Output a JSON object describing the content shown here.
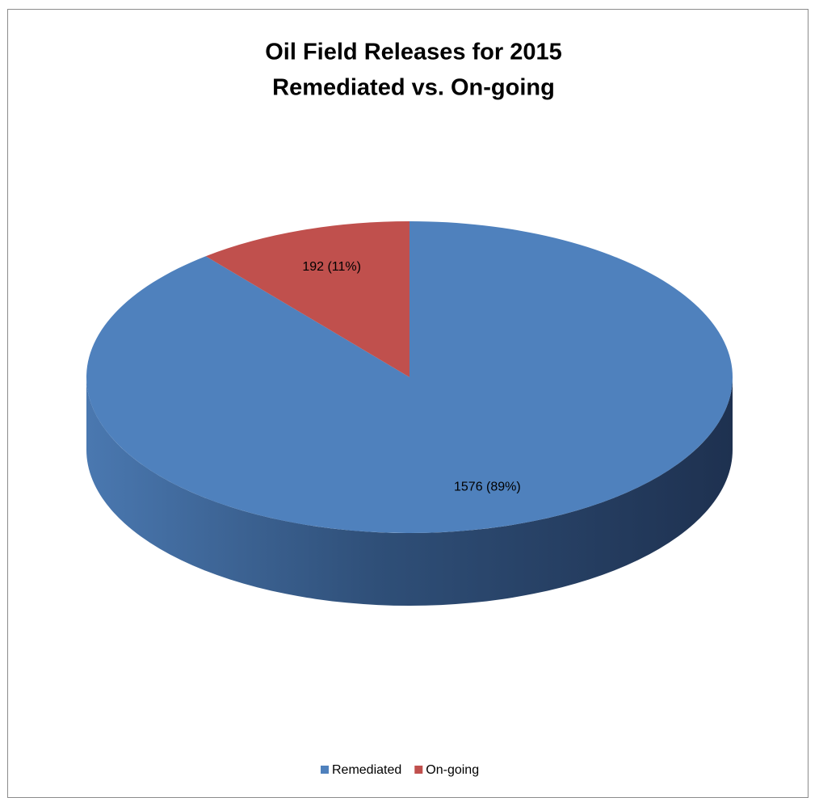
{
  "chart_data": {
    "type": "pie",
    "title": "Oil Field Releases for 2015",
    "subtitle": "Remediated vs. On-going",
    "categories": [
      "Remediated",
      "On-going"
    ],
    "values": [
      1576,
      192
    ],
    "value_labels": [
      "1576   (89%)",
      "192   (11%)"
    ],
    "colors": [
      "#4f81bd",
      "#c0504d"
    ],
    "legend": "bottom"
  }
}
